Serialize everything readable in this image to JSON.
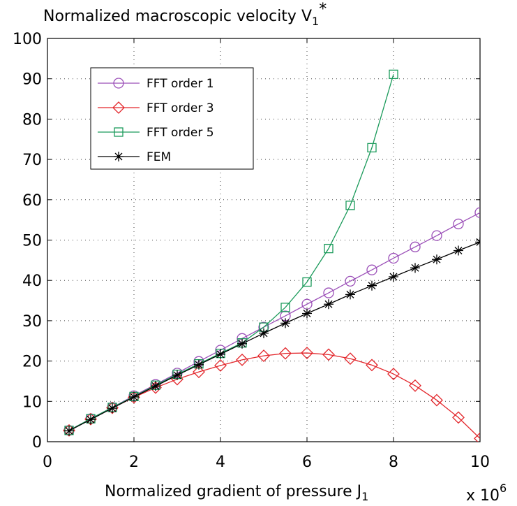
{
  "chart_data": {
    "type": "line",
    "title": "Normalized macroscopic velocity V",
    "title_subscript": "1",
    "title_superscript": "*",
    "x_label": "Normalized gradient of pressure J",
    "x_label_subscript": "1",
    "x_multiplier": {
      "base": "x 10",
      "exponent": "6"
    },
    "x": [
      0.5,
      1,
      1.5,
      2,
      2.5,
      3,
      3.5,
      4,
      4.5,
      5,
      5.5,
      6,
      6.5,
      7,
      7.5,
      8,
      8.5,
      9,
      9.5,
      10
    ],
    "series": [
      {
        "name": "FFT order 1",
        "color": "#9b4fb8",
        "marker": "circle",
        "values": [
          2.8,
          5.7,
          8.5,
          11.4,
          14.2,
          17.0,
          19.9,
          22.7,
          25.6,
          28.4,
          31.2,
          34.1,
          36.9,
          39.8,
          42.6,
          45.5,
          48.3,
          51.1,
          54.0,
          56.8
        ]
      },
      {
        "name": "FFT order 3",
        "color": "#e3262b",
        "marker": "diamond",
        "values": [
          2.8,
          5.6,
          8.4,
          11.0,
          13.4,
          15.5,
          17.3,
          18.9,
          20.3,
          21.3,
          21.9,
          22.0,
          21.6,
          20.6,
          19.0,
          16.8,
          13.9,
          10.3,
          6.0,
          0.8
        ]
      },
      {
        "name": "FFT order 5",
        "color": "#1a9a5a",
        "marker": "square",
        "values": [
          2.8,
          5.7,
          8.5,
          11.2,
          14.0,
          16.7,
          19.3,
          21.9,
          24.5,
          28.4,
          33.3,
          39.6,
          47.9,
          58.6,
          72.9,
          91.1,
          null,
          null,
          null,
          null
        ]
      },
      {
        "name": "FEM",
        "color": "#000000",
        "marker": "star",
        "values": [
          2.7,
          5.5,
          8.3,
          11.1,
          13.8,
          16.5,
          19.1,
          21.7,
          24.3,
          26.9,
          29.4,
          31.8,
          34.1,
          36.5,
          38.7,
          40.9,
          43.1,
          45.2,
          47.4,
          49.5
        ]
      }
    ],
    "xlim": [
      0,
      10
    ],
    "xticks": [
      0,
      2,
      4,
      6,
      8,
      10
    ],
    "ylim": [
      0,
      100
    ],
    "yticks": [
      0,
      10,
      20,
      30,
      40,
      50,
      60,
      70,
      80,
      90,
      100
    ],
    "grid": true,
    "legend": "upper left"
  }
}
